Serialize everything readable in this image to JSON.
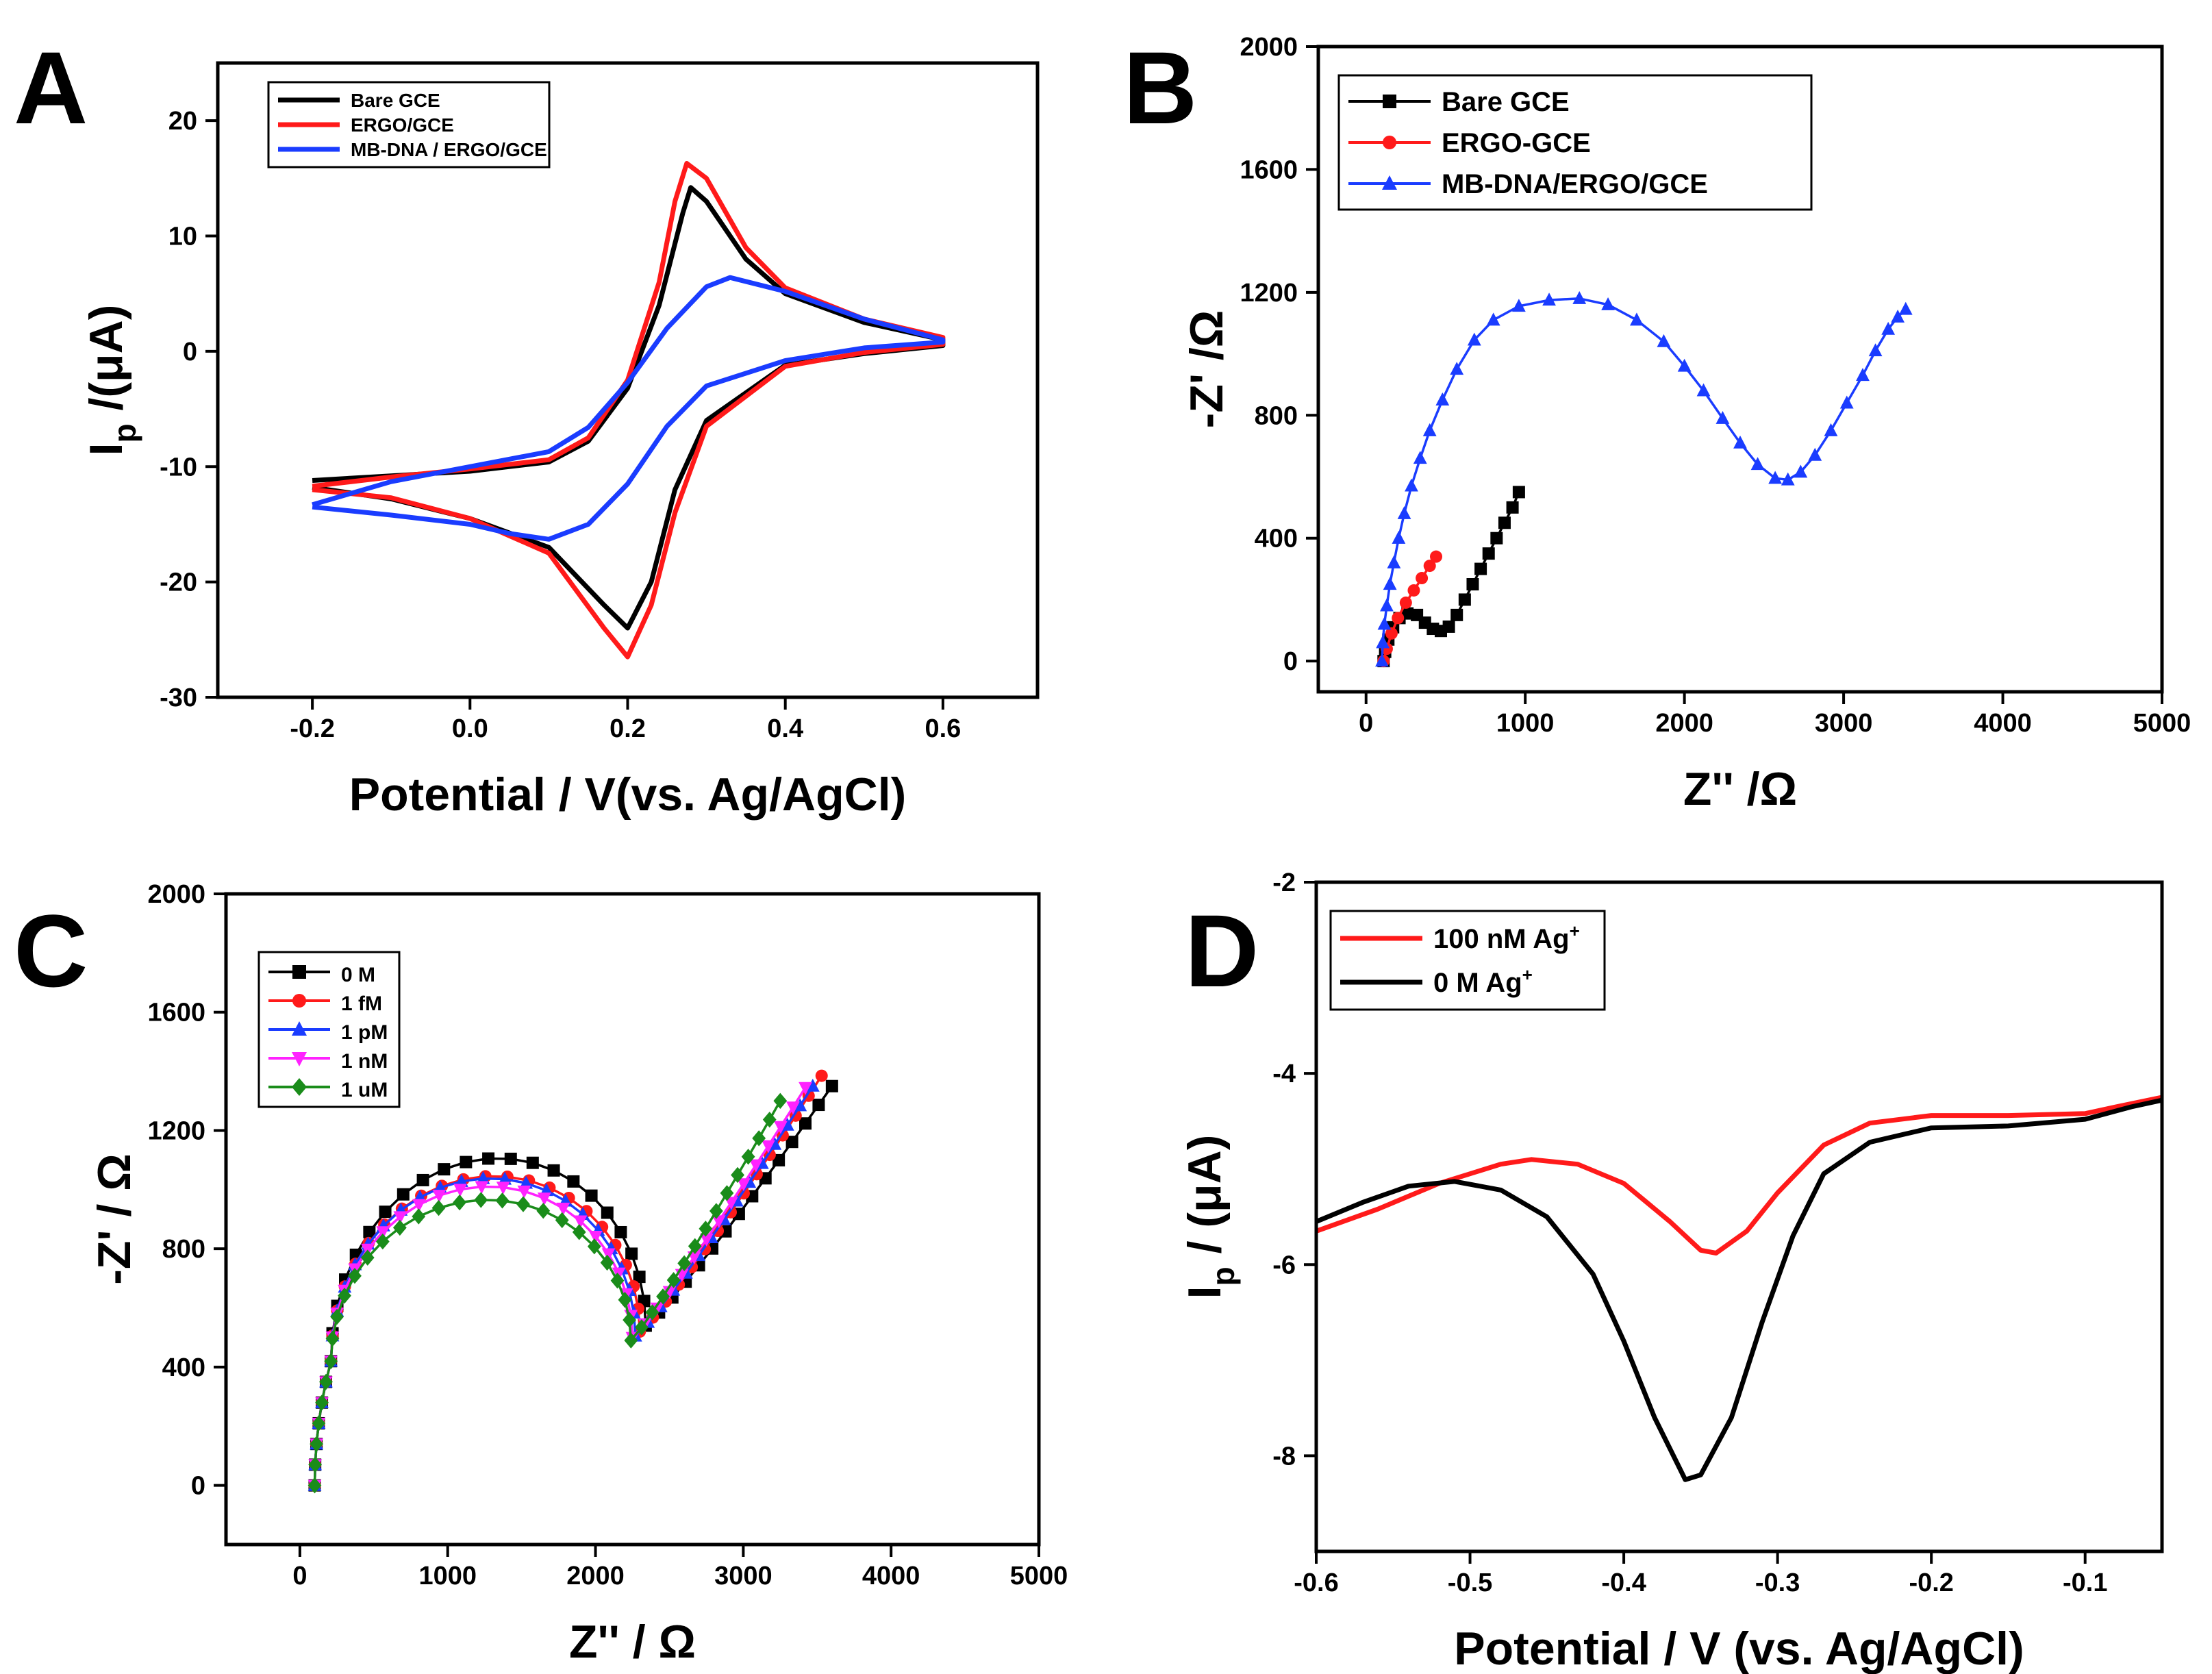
{
  "colors": {
    "black": "#000000",
    "red": "#ff1a1a",
    "blue": "#1a3cff",
    "magenta": "#ff22ff",
    "green": "#1a8c1a"
  },
  "chart_data": [
    {
      "id": "A",
      "panel_label": "A",
      "type": "line",
      "title": "",
      "xlabel": "Potential / V(vs. Ag/AgCl)",
      "ylabel_main": "I",
      "ylabel_sub": "p",
      "ylabel_rest": " /(μA)",
      "xlim": [
        -0.32,
        0.72
      ],
      "ylim": [
        -30,
        25
      ],
      "xticks": [
        -0.2,
        0.0,
        0.2,
        0.4,
        0.6
      ],
      "xtick_labels": [
        "-0.2",
        "0.0",
        "0.2",
        "0.4",
        "0.6"
      ],
      "yticks": [
        -30,
        -20,
        -10,
        0,
        10,
        20
      ],
      "ytick_labels": [
        "-30",
        "-20",
        "-10",
        "0",
        "10",
        "20"
      ],
      "legend": "top-left",
      "series": [
        {
          "name": "Bare GCE",
          "color": "#000000",
          "marker": "none",
          "points": [
            [
              -0.2,
              -11.2
            ],
            [
              -0.1,
              -10.8
            ],
            [
              0.0,
              -10.4
            ],
            [
              0.1,
              -9.6
            ],
            [
              0.15,
              -7.8
            ],
            [
              0.2,
              -3.2
            ],
            [
              0.24,
              4
            ],
            [
              0.27,
              12
            ],
            [
              0.28,
              14.2
            ],
            [
              0.3,
              13
            ],
            [
              0.35,
              8
            ],
            [
              0.4,
              5
            ],
            [
              0.5,
              2.5
            ],
            [
              0.6,
              1.0
            ],
            [
              0.6,
              0.5
            ],
            [
              0.5,
              -0.2
            ],
            [
              0.4,
              -1.2
            ],
            [
              0.3,
              -6
            ],
            [
              0.26,
              -12
            ],
            [
              0.23,
              -20
            ],
            [
              0.2,
              -24
            ],
            [
              0.17,
              -22
            ],
            [
              0.1,
              -17
            ],
            [
              0.0,
              -14.5
            ],
            [
              -0.1,
              -12.8
            ],
            [
              -0.2,
              -11.8
            ]
          ]
        },
        {
          "name": "ERGO/GCE",
          "color": "#ff1a1a",
          "marker": "none",
          "points": [
            [
              -0.2,
              -11.7
            ],
            [
              -0.1,
              -10.9
            ],
            [
              0.0,
              -10.2
            ],
            [
              0.1,
              -9.4
            ],
            [
              0.15,
              -7.5
            ],
            [
              0.2,
              -2.5
            ],
            [
              0.24,
              6
            ],
            [
              0.26,
              13
            ],
            [
              0.275,
              16.3
            ],
            [
              0.3,
              15
            ],
            [
              0.35,
              9
            ],
            [
              0.4,
              5.5
            ],
            [
              0.5,
              2.8
            ],
            [
              0.6,
              1.2
            ],
            [
              0.6,
              0.6
            ],
            [
              0.5,
              -0.1
            ],
            [
              0.4,
              -1.3
            ],
            [
              0.3,
              -6.5
            ],
            [
              0.26,
              -14
            ],
            [
              0.23,
              -22
            ],
            [
              0.2,
              -26.5
            ],
            [
              0.17,
              -24
            ],
            [
              0.1,
              -17.5
            ],
            [
              0.0,
              -14.5
            ],
            [
              -0.1,
              -12.7
            ],
            [
              -0.2,
              -12.0
            ]
          ]
        },
        {
          "name": "MB-DNA / ERGO/GCE",
          "color": "#1a3cff",
          "marker": "none",
          "points": [
            [
              -0.2,
              -13.3
            ],
            [
              -0.1,
              -11.3
            ],
            [
              0.0,
              -10.0
            ],
            [
              0.1,
              -8.7
            ],
            [
              0.15,
              -6.6
            ],
            [
              0.2,
              -2.7
            ],
            [
              0.25,
              2
            ],
            [
              0.3,
              5.6
            ],
            [
              0.33,
              6.4
            ],
            [
              0.4,
              5.2
            ],
            [
              0.5,
              2.8
            ],
            [
              0.6,
              1.0
            ],
            [
              0.6,
              0.8
            ],
            [
              0.5,
              0.3
            ],
            [
              0.4,
              -0.8
            ],
            [
              0.3,
              -3
            ],
            [
              0.25,
              -6.5
            ],
            [
              0.2,
              -11.5
            ],
            [
              0.15,
              -15
            ],
            [
              0.1,
              -16.3
            ],
            [
              0.05,
              -15.8
            ],
            [
              0.0,
              -15.0
            ],
            [
              -0.1,
              -14.2
            ],
            [
              -0.2,
              -13.5
            ]
          ]
        }
      ]
    },
    {
      "id": "B",
      "panel_label": "B",
      "type": "scatter",
      "title": "",
      "xlabel": "Z'' /Ω",
      "ylabel": "-Z' /Ω",
      "xlim": [
        -300,
        5000
      ],
      "ylim": [
        -100,
        2000
      ],
      "xticks": [
        0,
        1000,
        2000,
        3000,
        4000,
        5000
      ],
      "xtick_labels": [
        "0",
        "1000",
        "2000",
        "3000",
        "4000",
        "5000"
      ],
      "yticks": [
        0,
        400,
        800,
        1200,
        1600,
        2000
      ],
      "ytick_labels": [
        "0",
        "400",
        "800",
        "1200",
        "1600",
        "2000"
      ],
      "legend": "top-left",
      "series": [
        {
          "name": "Bare GCE",
          "color": "#000000",
          "marker": "square",
          "points": [
            [
              110,
              0
            ],
            [
              120,
              30
            ],
            [
              140,
              70
            ],
            [
              170,
              110
            ],
            [
              210,
              140
            ],
            [
              260,
              155
            ],
            [
              320,
              150
            ],
            [
              370,
              125
            ],
            [
              420,
              105
            ],
            [
              470,
              98
            ],
            [
              520,
              112
            ],
            [
              570,
              150
            ],
            [
              620,
              200
            ],
            [
              670,
              250
            ],
            [
              720,
              300
            ],
            [
              770,
              350
            ],
            [
              820,
              400
            ],
            [
              870,
              450
            ],
            [
              920,
              500
            ],
            [
              960,
              550
            ]
          ]
        },
        {
          "name": "ERGO-GCE",
          "color": "#ff1a1a",
          "marker": "circle",
          "points": [
            [
              110,
              0
            ],
            [
              130,
              40
            ],
            [
              160,
              90
            ],
            [
              200,
              140
            ],
            [
              250,
              190
            ],
            [
              300,
              230
            ],
            [
              350,
              270
            ],
            [
              400,
              310
            ],
            [
              440,
              340
            ]
          ]
        },
        {
          "name": "MB-DNA/ERGO/GCE",
          "color": "#1a3cff",
          "marker": "triangle",
          "points": [
            [
              100,
              0
            ],
            [
              105,
              60
            ],
            [
              115,
              120
            ],
            [
              130,
              180
            ],
            [
              150,
              250
            ],
            [
              175,
              320
            ],
            [
              205,
              400
            ],
            [
              240,
              480
            ],
            [
              285,
              570
            ],
            [
              340,
              660
            ],
            [
              400,
              750
            ],
            [
              480,
              850
            ],
            [
              570,
              950
            ],
            [
              680,
              1045
            ],
            [
              800,
              1110
            ],
            [
              960,
              1155
            ],
            [
              1150,
              1175
            ],
            [
              1340,
              1180
            ],
            [
              1520,
              1160
            ],
            [
              1700,
              1110
            ],
            [
              1870,
              1040
            ],
            [
              2000,
              960
            ],
            [
              2120,
              880
            ],
            [
              2240,
              790
            ],
            [
              2350,
              710
            ],
            [
              2460,
              640
            ],
            [
              2570,
              595
            ],
            [
              2650,
              590
            ],
            [
              2730,
              615
            ],
            [
              2820,
              670
            ],
            [
              2920,
              750
            ],
            [
              3020,
              840
            ],
            [
              3120,
              930
            ],
            [
              3200,
              1010
            ],
            [
              3280,
              1080
            ],
            [
              3340,
              1120
            ],
            [
              3390,
              1145
            ]
          ]
        }
      ]
    },
    {
      "id": "C",
      "panel_label": "C",
      "type": "scatter",
      "title": "",
      "xlabel": "Z'' / Ω",
      "ylabel": "-Z' / Ω",
      "xlim": [
        -500,
        5000
      ],
      "ylim": [
        -200,
        2000
      ],
      "xticks": [
        0,
        1000,
        2000,
        3000,
        4000,
        5000
      ],
      "xtick_labels": [
        "0",
        "1000",
        "2000",
        "3000",
        "4000",
        "5000"
      ],
      "yticks": [
        0,
        400,
        800,
        1200,
        1600,
        2000
      ],
      "ytick_labels": [
        "0",
        "400",
        "800",
        "1200",
        "1600",
        "2000"
      ],
      "legend": "top-left",
      "series": [
        {
          "name": "0 M",
          "color": "#000000",
          "marker": "square",
          "peak": 1165,
          "xpeak": 1340,
          "xmin": 2340,
          "ymin": 540,
          "xend": 3600,
          "yend": 1350
        },
        {
          "name": "1 fM",
          "color": "#ff1a1a",
          "marker": "circle",
          "peak": 1095,
          "xpeak": 1260,
          "xmin": 2300,
          "ymin": 520,
          "xend": 3530,
          "yend": 1385
        },
        {
          "name": "1 pM",
          "color": "#1a3cff",
          "marker": "triangle",
          "peak": 1080,
          "xpeak": 1230,
          "xmin": 2270,
          "ymin": 505,
          "xend": 3470,
          "yend": 1350
        },
        {
          "name": "1 nM",
          "color": "#ff22ff",
          "marker": "triangle-down",
          "peak": 1050,
          "xpeak": 1200,
          "xmin": 2250,
          "ymin": 500,
          "xend": 3420,
          "yend": 1345
        },
        {
          "name": "1 uM",
          "color": "#1a8c1a",
          "marker": "diamond",
          "peak": 1000,
          "xpeak": 1150,
          "xmin": 2240,
          "ymin": 490,
          "xend": 3250,
          "yend": 1300
        }
      ]
    },
    {
      "id": "D",
      "panel_label": "D",
      "type": "line",
      "title": "",
      "xlabel": "Potential / V (vs. Ag/AgCl)",
      "ylabel_main": "I",
      "ylabel_sub": "p",
      "ylabel_rest": " / (μA)",
      "xlim": [
        -0.6,
        -0.05
      ],
      "ylim": [
        -9.0,
        -2.0
      ],
      "xticks": [
        -0.6,
        -0.5,
        -0.4,
        -0.3,
        -0.2,
        -0.1
      ],
      "xtick_labels": [
        "-0.6",
        "-0.5",
        "-0.4",
        "-0.3",
        "-0.2",
        "-0.1"
      ],
      "yticks": [
        -8,
        -6,
        -4,
        -2
      ],
      "ytick_labels": [
        "-8",
        "-6",
        "-4",
        "-2"
      ],
      "legend": "top-left",
      "series": [
        {
          "name": "100 nM Ag",
          "sup": "+",
          "color": "#ff1a1a",
          "marker": "none",
          "points": [
            [
              -0.6,
              -5.65
            ],
            [
              -0.56,
              -5.42
            ],
            [
              -0.52,
              -5.15
            ],
            [
              -0.48,
              -4.95
            ],
            [
              -0.46,
              -4.9
            ],
            [
              -0.43,
              -4.95
            ],
            [
              -0.4,
              -5.15
            ],
            [
              -0.37,
              -5.55
            ],
            [
              -0.35,
              -5.85
            ],
            [
              -0.34,
              -5.88
            ],
            [
              -0.32,
              -5.65
            ],
            [
              -0.3,
              -5.25
            ],
            [
              -0.27,
              -4.75
            ],
            [
              -0.24,
              -4.52
            ],
            [
              -0.2,
              -4.44
            ],
            [
              -0.15,
              -4.44
            ],
            [
              -0.1,
              -4.42
            ],
            [
              -0.08,
              -4.35
            ],
            [
              -0.05,
              -4.25
            ]
          ]
        },
        {
          "name": "0 M Ag",
          "sup": "+",
          "color": "#000000",
          "marker": "none",
          "points": [
            [
              -0.6,
              -5.55
            ],
            [
              -0.57,
              -5.35
            ],
            [
              -0.54,
              -5.18
            ],
            [
              -0.51,
              -5.13
            ],
            [
              -0.48,
              -5.22
            ],
            [
              -0.45,
              -5.5
            ],
            [
              -0.42,
              -6.1
            ],
            [
              -0.4,
              -6.8
            ],
            [
              -0.38,
              -7.6
            ],
            [
              -0.36,
              -8.25
            ],
            [
              -0.35,
              -8.2
            ],
            [
              -0.33,
              -7.6
            ],
            [
              -0.31,
              -6.6
            ],
            [
              -0.29,
              -5.7
            ],
            [
              -0.27,
              -5.05
            ],
            [
              -0.24,
              -4.72
            ],
            [
              -0.2,
              -4.57
            ],
            [
              -0.15,
              -4.55
            ],
            [
              -0.1,
              -4.48
            ],
            [
              -0.07,
              -4.35
            ],
            [
              -0.05,
              -4.28
            ]
          ]
        }
      ]
    }
  ]
}
